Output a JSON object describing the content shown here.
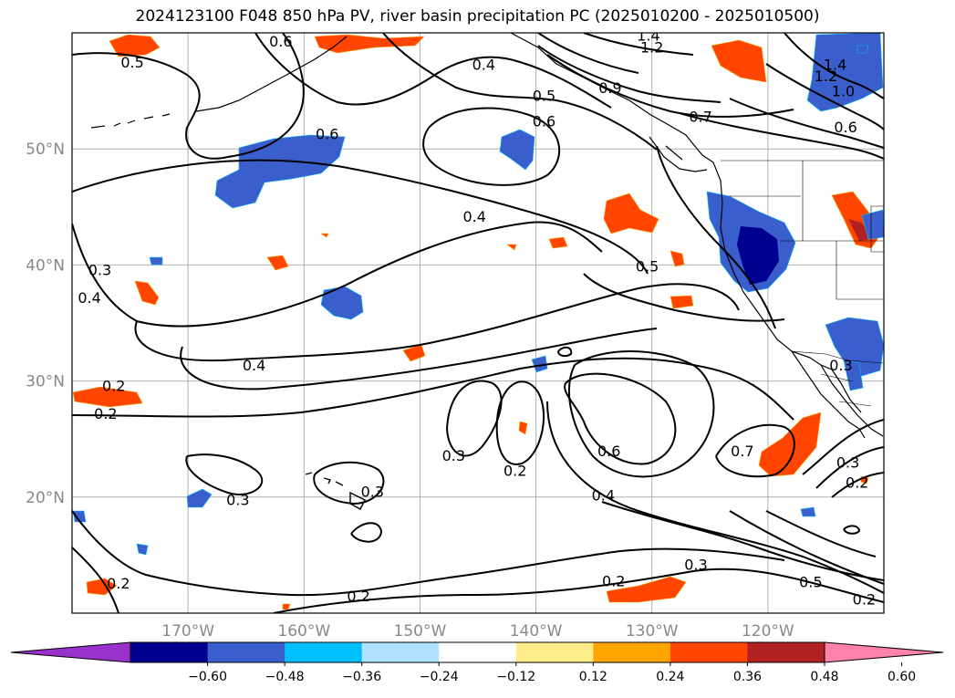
{
  "title": "2024123100 F048 850 hPa PV, river basin precipitation PC (2025010200 - 2025010500)",
  "map": {
    "lon_range": [
      -180,
      -110
    ],
    "lat_range": [
      10,
      60
    ],
    "lat_ticks": [
      {
        "v": 20,
        "label": "20°N"
      },
      {
        "v": 30,
        "label": "30°N"
      },
      {
        "v": 40,
        "label": "40°N"
      },
      {
        "v": 50,
        "label": "50°N"
      }
    ],
    "lon_ticks": [
      {
        "v": -170,
        "label": "170°W"
      },
      {
        "v": -160,
        "label": "160°W"
      },
      {
        "v": -150,
        "label": "150°W"
      },
      {
        "v": -140,
        "label": "140°W"
      },
      {
        "v": -130,
        "label": "130°W"
      },
      {
        "v": -120,
        "label": "120°W"
      }
    ],
    "contour_labels": [
      {
        "text": "0.5",
        "lon": -174.8,
        "lat": 57.5
      },
      {
        "text": "0.6",
        "lon": -162,
        "lat": 59.3
      },
      {
        "text": "0.4",
        "lon": -144.5,
        "lat": 57.3
      },
      {
        "text": "0.5",
        "lon": -139.3,
        "lat": 54.6
      },
      {
        "text": "0.6",
        "lon": -139.3,
        "lat": 52.4
      },
      {
        "text": "0.6",
        "lon": -158,
        "lat": 51.3
      },
      {
        "text": "1.4",
        "lon": -130.3,
        "lat": 59.8
      },
      {
        "text": "1.2",
        "lon": -130,
        "lat": 58.8
      },
      {
        "text": "0.9",
        "lon": -133.6,
        "lat": 55.3
      },
      {
        "text": "0.7",
        "lon": -125.8,
        "lat": 52.8
      },
      {
        "text": "1.4",
        "lon": -114.2,
        "lat": 57.3
      },
      {
        "text": "1.2",
        "lon": -115,
        "lat": 56.3
      },
      {
        "text": "1.0",
        "lon": -113.5,
        "lat": 55.0
      },
      {
        "text": "0.6",
        "lon": -113.3,
        "lat": 51.9
      },
      {
        "text": "0.4",
        "lon": -145.3,
        "lat": 44.2
      },
      {
        "text": "0.5",
        "lon": -130.4,
        "lat": 39.9
      },
      {
        "text": "0.3",
        "lon": -177.6,
        "lat": 39.6
      },
      {
        "text": "0.4",
        "lon": -178.5,
        "lat": 37.2
      },
      {
        "text": "0.4",
        "lon": -164.3,
        "lat": 31.4
      },
      {
        "text": "0.2",
        "lon": -176.4,
        "lat": 29.6
      },
      {
        "text": "0.2",
        "lon": -177.1,
        "lat": 27.2
      },
      {
        "text": "0.3",
        "lon": -147.1,
        "lat": 23.6
      },
      {
        "text": "0.2",
        "lon": -141.8,
        "lat": 22.3
      },
      {
        "text": "0.3",
        "lon": -154.1,
        "lat": 20.5
      },
      {
        "text": "0.3",
        "lon": -165.7,
        "lat": 19.8
      },
      {
        "text": "0.6",
        "lon": -133.7,
        "lat": 24.0
      },
      {
        "text": "0.7",
        "lon": -122.2,
        "lat": 24.0
      },
      {
        "text": "0.4",
        "lon": -134.2,
        "lat": 20.2
      },
      {
        "text": "0.3",
        "lon": -113.7,
        "lat": 31.4
      },
      {
        "text": "0.3",
        "lon": -113.1,
        "lat": 23.0
      },
      {
        "text": "0.2",
        "lon": -112.3,
        "lat": 21.3
      },
      {
        "text": "0.3",
        "lon": -126.2,
        "lat": 14.2
      },
      {
        "text": "0.2",
        "lon": -133.3,
        "lat": 12.8
      },
      {
        "text": "0.5",
        "lon": -116.3,
        "lat": 12.7
      },
      {
        "text": "0.2",
        "lon": -111.7,
        "lat": 11.2
      },
      {
        "text": "0.2",
        "lon": -155.3,
        "lat": 11.5
      },
      {
        "text": "0.2",
        "lon": -176.0,
        "lat": 12.6
      }
    ]
  },
  "colorbar": {
    "colors": [
      "#9932CC",
      "#000090",
      "#3A5FCD",
      "#00BFFF",
      "#B0E2FF",
      "#FFFFFF",
      "#FFEC8B",
      "#FFA500",
      "#FF4500",
      "#B22222",
      "#FF82AB"
    ],
    "tick_labels": [
      "−0.60",
      "−0.48",
      "−0.36",
      "−0.24",
      "−0.12",
      "0.12",
      "0.24",
      "0.36",
      "0.48",
      "0.60"
    ]
  }
}
